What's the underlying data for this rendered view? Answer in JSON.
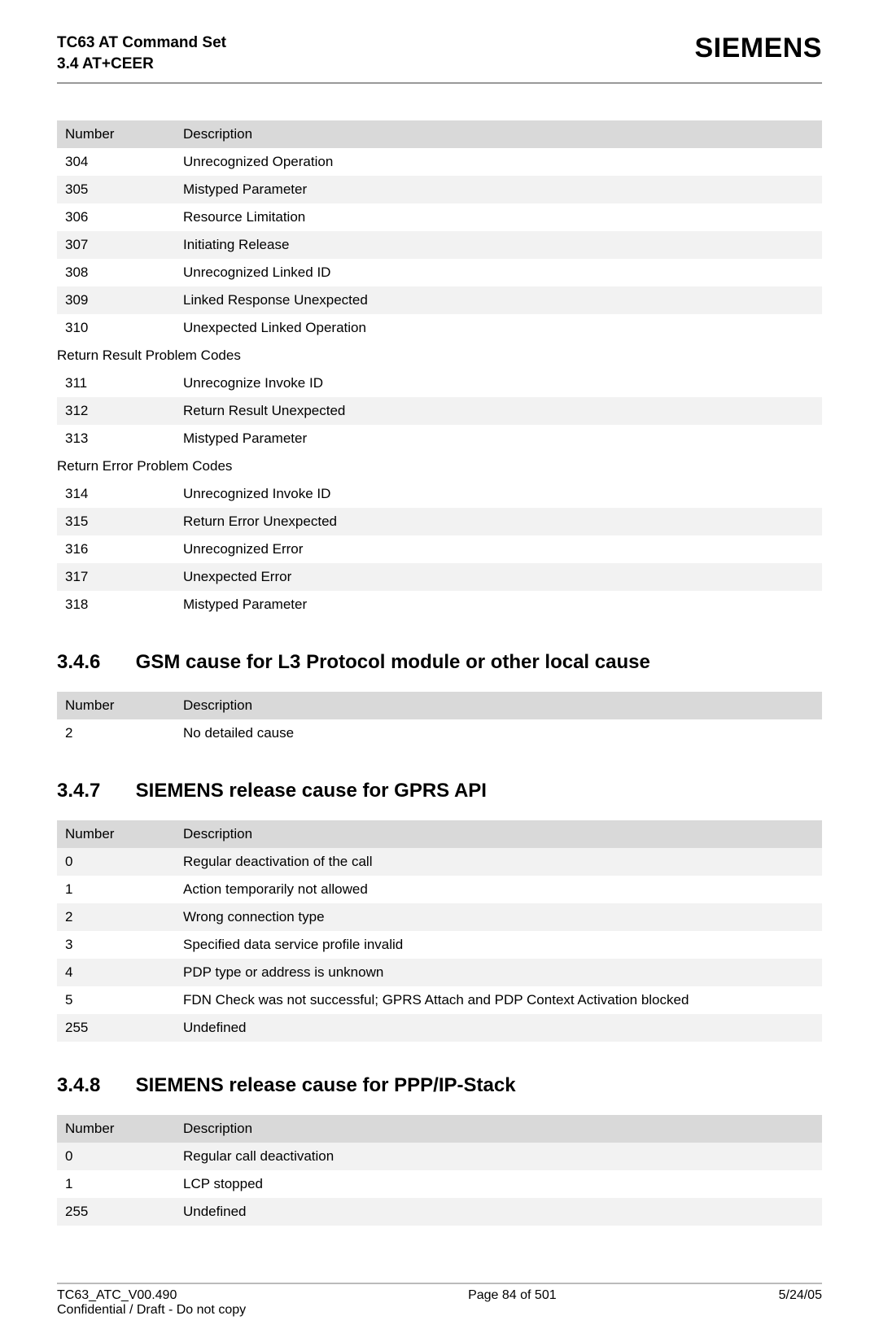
{
  "header": {
    "title_line1": "TC63 AT Command Set",
    "title_line2": "3.4 AT+CEER",
    "brand": "SIEMENS"
  },
  "table1": {
    "columns": [
      "Number",
      "Description"
    ],
    "rows": [
      [
        "304",
        "Unrecognized Operation"
      ],
      [
        "305",
        "Mistyped Parameter"
      ],
      [
        "306",
        "Resource Limitation"
      ],
      [
        "307",
        "Initiating Release"
      ],
      [
        "308",
        "Unrecognized Linked ID"
      ],
      [
        "309",
        "Linked Response Unexpected"
      ],
      [
        "310",
        "Unexpected Linked Operation"
      ]
    ],
    "section1_label": "Return Result Problem Codes",
    "rows2": [
      [
        "311",
        "Unrecognize Invoke ID"
      ],
      [
        "312",
        "Return Result Unexpected"
      ],
      [
        "313",
        "Mistyped Parameter"
      ]
    ],
    "section2_label": "Return Error Problem Codes",
    "rows3": [
      [
        "314",
        "Unrecognized Invoke ID"
      ],
      [
        "315",
        "Return Error Unexpected"
      ],
      [
        "316",
        "Unrecognized Error"
      ],
      [
        "317",
        "Unexpected Error"
      ],
      [
        "318",
        "Mistyped Parameter"
      ]
    ]
  },
  "section346": {
    "num": "3.4.6",
    "title": "GSM cause for L3 Protocol module or other local cause",
    "columns": [
      "Number",
      "Description"
    ],
    "rows": [
      [
        "2",
        "No detailed cause"
      ]
    ]
  },
  "section347": {
    "num": "3.4.7",
    "title": "SIEMENS release cause for GPRS API",
    "columns": [
      "Number",
      "Description"
    ],
    "rows": [
      [
        "0",
        "Regular deactivation of the call"
      ],
      [
        "1",
        "Action temporarily not allowed"
      ],
      [
        "2",
        "Wrong connection type"
      ],
      [
        "3",
        "Specified data service profile invalid"
      ],
      [
        "4",
        "PDP type or address is unknown"
      ],
      [
        "5",
        "FDN Check was not successful; GPRS Attach and PDP Context Activation blocked"
      ],
      [
        "255",
        "Undefined"
      ]
    ]
  },
  "section348": {
    "num": "3.4.8",
    "title": "SIEMENS release cause for PPP/IP-Stack",
    "columns": [
      "Number",
      "Description"
    ],
    "rows": [
      [
        "0",
        "Regular call deactivation"
      ],
      [
        "1",
        "LCP stopped"
      ],
      [
        "255",
        "Undefined"
      ]
    ]
  },
  "footer": {
    "left_line1": "TC63_ATC_V00.490",
    "left_line2": "Confidential / Draft - Do not copy",
    "center": "Page 84 of 501",
    "right": "5/24/05"
  }
}
